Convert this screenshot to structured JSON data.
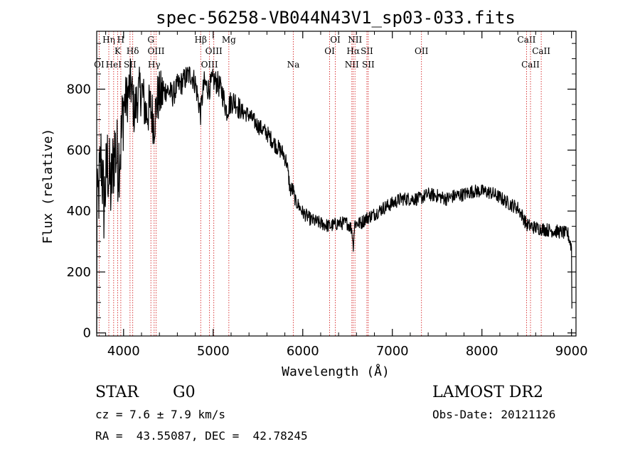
{
  "chart_data": {
    "type": "line",
    "title": "spec-56258-VB044N43V1_sp03-033.fits",
    "xlabel": "Wavelength (Å)",
    "ylabel": "Flux (relative)",
    "xlim": [
      3700,
      9050
    ],
    "ylim": [
      -10,
      990
    ],
    "xticks": [
      4000,
      5000,
      6000,
      7000,
      8000,
      9000
    ],
    "yticks": [
      0,
      200,
      400,
      600,
      800
    ],
    "grid": false,
    "line_color": "#000000",
    "marker_color": "#d62728",
    "spectrum_anchors": [
      [
        3700,
        0
      ],
      [
        3705,
        560
      ],
      [
        3720,
        450
      ],
      [
        3750,
        580
      ],
      [
        3780,
        420
      ],
      [
        3820,
        560
      ],
      [
        3860,
        470
      ],
      [
        3900,
        610
      ],
      [
        3940,
        560
      ],
      [
        3970,
        620
      ],
      [
        4000,
        750
      ],
      [
        4040,
        770
      ],
      [
        4080,
        820
      ],
      [
        4120,
        720
      ],
      [
        4160,
        780
      ],
      [
        4200,
        800
      ],
      [
        4250,
        720
      ],
      [
        4300,
        740
      ],
      [
        4340,
        690
      ],
      [
        4380,
        770
      ],
      [
        4420,
        780
      ],
      [
        4480,
        800
      ],
      [
        4550,
        780
      ],
      [
        4600,
        810
      ],
      [
        4650,
        820
      ],
      [
        4700,
        840
      ],
      [
        4750,
        850
      ],
      [
        4800,
        820
      ],
      [
        4860,
        720
      ],
      [
        4880,
        780
      ],
      [
        4900,
        820
      ],
      [
        4950,
        800
      ],
      [
        5000,
        830
      ],
      [
        5050,
        820
      ],
      [
        5100,
        790
      ],
      [
        5150,
        730
      ],
      [
        5200,
        760
      ],
      [
        5250,
        760
      ],
      [
        5300,
        730
      ],
      [
        5400,
        715
      ],
      [
        5500,
        680
      ],
      [
        5600,
        655
      ],
      [
        5700,
        615
      ],
      [
        5780,
        590
      ],
      [
        5820,
        560
      ],
      [
        5860,
        470
      ],
      [
        5890,
        470
      ],
      [
        5920,
        430
      ],
      [
        5950,
        420
      ],
      [
        6000,
        395
      ],
      [
        6100,
        370
      ],
      [
        6200,
        360
      ],
      [
        6300,
        350
      ],
      [
        6400,
        360
      ],
      [
        6500,
        360
      ],
      [
        6550,
        340
      ],
      [
        6562,
        280
      ],
      [
        6580,
        360
      ],
      [
        6650,
        360
      ],
      [
        6700,
        375
      ],
      [
        6800,
        390
      ],
      [
        6900,
        410
      ],
      [
        7000,
        425
      ],
      [
        7100,
        440
      ],
      [
        7200,
        440
      ],
      [
        7300,
        440
      ],
      [
        7400,
        455
      ],
      [
        7500,
        450
      ],
      [
        7600,
        440
      ],
      [
        7700,
        450
      ],
      [
        7800,
        455
      ],
      [
        7900,
        465
      ],
      [
        8000,
        465
      ],
      [
        8100,
        460
      ],
      [
        8200,
        445
      ],
      [
        8300,
        425
      ],
      [
        8400,
        410
      ],
      [
        8450,
        385
      ],
      [
        8500,
        355
      ],
      [
        8600,
        345
      ],
      [
        8700,
        340
      ],
      [
        8800,
        335
      ],
      [
        8900,
        330
      ],
      [
        8960,
        325
      ],
      [
        9000,
        280
      ],
      [
        9005,
        30
      ]
    ],
    "lines": [
      {
        "label": "OI",
        "wave": 3727,
        "row": 3
      },
      {
        "label": "Hη",
        "wave": 3835,
        "row": 1
      },
      {
        "label": "HeI",
        "wave": 3889,
        "row": 3
      },
      {
        "label": "K",
        "wave": 3934,
        "row": 2
      },
      {
        "label": "H",
        "wave": 3969,
        "row": 1
      },
      {
        "label": "SII",
        "wave": 4072,
        "row": 3
      },
      {
        "label": "Hδ",
        "wave": 4102,
        "row": 2
      },
      {
        "label": "G",
        "wave": 4305,
        "row": 1
      },
      {
        "label": "OIII",
        "wave": 4363,
        "row": 2
      },
      {
        "label": "Hγ",
        "wave": 4341,
        "row": 3
      },
      {
        "label": "Hβ",
        "wave": 4861,
        "row": 1
      },
      {
        "label": "OIII",
        "wave": 4959,
        "row": 3
      },
      {
        "label": "OIII",
        "wave": 5007,
        "row": 2
      },
      {
        "label": "Mg",
        "wave": 5175,
        "row": 1
      },
      {
        "label": "Na",
        "wave": 5894,
        "row": 3
      },
      {
        "label": "OI",
        "wave": 6300,
        "row": 2
      },
      {
        "label": "OI",
        "wave": 6363,
        "row": 1
      },
      {
        "label": "NII",
        "wave": 6548,
        "row": 3
      },
      {
        "label": "Hα",
        "wave": 6563,
        "row": 2
      },
      {
        "label": "NII",
        "wave": 6583,
        "row": 1
      },
      {
        "label": "SII",
        "wave": 6716,
        "row": 2
      },
      {
        "label": "SII",
        "wave": 6731,
        "row": 3
      },
      {
        "label": "OII",
        "wave": 7325,
        "row": 2
      },
      {
        "label": "CaII",
        "wave": 8498,
        "row": 1
      },
      {
        "label": "CaII",
        "wave": 8542,
        "row": 3
      },
      {
        "label": "CaII",
        "wave": 8662,
        "row": 2
      }
    ]
  },
  "info": {
    "object_class": "STAR",
    "subclass": "G0",
    "survey": "LAMOST DR2",
    "cz": "cz = 7.6 ± 7.9 km/s",
    "obs_date": "Obs-Date: 20121126",
    "coords": "RA =  43.55087, DEC =  42.78245"
  }
}
